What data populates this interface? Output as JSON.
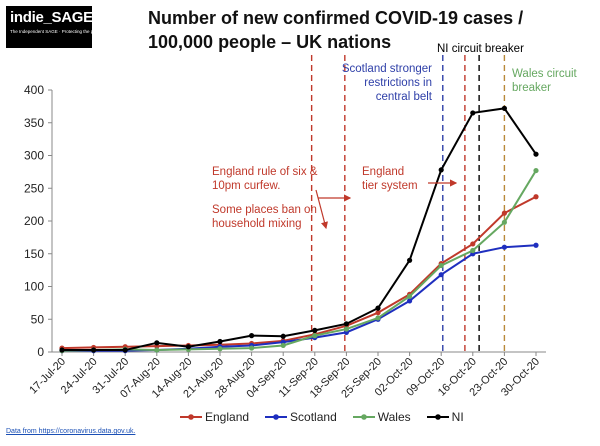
{
  "logo": {
    "name": "indie_SAGE",
    "tagline": "The Independent SAGE · Protecting the public"
  },
  "chart_data": {
    "type": "line",
    "title": "Number of new confirmed COVID-19 cases / 100,000 people - UK nations",
    "title_lines": [
      "Number of new confirmed COVID-19 cases /",
      "100,000 people – UK nations"
    ],
    "xlabel": "",
    "ylabel": "",
    "categories": [
      "17-Jul-20",
      "24-Jul-20",
      "31-Jul-20",
      "07-Aug-20",
      "14-Aug-20",
      "21-Aug-20",
      "28-Aug-20",
      "04-Sep-20",
      "11-Sep-20",
      "18-Sep-20",
      "25-Sep-20",
      "02-Oct-20",
      "09-Oct-20",
      "16-Oct-20",
      "23-Oct-20",
      "30-Oct-20"
    ],
    "ylim": [
      0,
      400
    ],
    "yticks": [
      0,
      50,
      100,
      150,
      200,
      250,
      300,
      350,
      400
    ],
    "grid": false,
    "legend_position": "bottom",
    "series": [
      {
        "name": "England",
        "color": "#c0392b",
        "values": [
          6,
          7,
          8,
          9,
          10,
          11,
          13,
          17,
          27,
          40,
          60,
          88,
          135,
          165,
          212,
          237
        ]
      },
      {
        "name": "Scotland",
        "color": "#1f2fbf",
        "values": [
          2,
          2,
          2,
          3,
          5,
          8,
          10,
          15,
          22,
          30,
          50,
          78,
          118,
          150,
          160,
          163
        ]
      },
      {
        "name": "Wales",
        "color": "#66a861",
        "values": [
          2,
          3,
          4,
          3,
          4,
          5,
          6,
          10,
          25,
          35,
          52,
          85,
          132,
          155,
          198,
          277
        ]
      },
      {
        "name": "NI",
        "color": "#000000",
        "values": [
          3,
          3,
          3,
          14,
          8,
          16,
          25,
          24,
          33,
          43,
          67,
          140,
          278,
          365,
          372,
          302
        ]
      }
    ],
    "events": [
      {
        "x": 7.9,
        "color": "#c0392b",
        "label": ""
      },
      {
        "x": 8.95,
        "color": "#c0392b",
        "label": ""
      },
      {
        "x": 12.75,
        "color": "#c0392b",
        "label": ""
      },
      {
        "x": 12.05,
        "color": "#2e3fa8",
        "label": ""
      },
      {
        "x": 13.2,
        "color": "#000000",
        "label": ""
      },
      {
        "x": 14.0,
        "color": "#b8893a",
        "label": ""
      }
    ],
    "annotations": [
      {
        "id": "england-rule-six",
        "text": [
          "England rule of six &",
          "10pm curfew."
        ],
        "color": "#c0392b",
        "align": "start"
      },
      {
        "id": "household-mixing",
        "text": [
          "Some places ban on",
          "household mixing"
        ],
        "color": "#c0392b",
        "align": "start"
      },
      {
        "id": "england-tier",
        "text": [
          "England",
          "tier system"
        ],
        "color": "#c0392b",
        "align": "start"
      },
      {
        "id": "scotland-restrictions",
        "text": [
          "Scotland stronger",
          "restrictions in",
          "central belt"
        ],
        "color": "#2e3fa8",
        "align": "end"
      },
      {
        "id": "ni-breaker",
        "text": [
          "NI circuit breaker"
        ],
        "color": "#000000",
        "align": "start"
      },
      {
        "id": "wales-breaker",
        "text": [
          "Wales circuit",
          "breaker"
        ],
        "color": "#66a861",
        "align": "start"
      }
    ]
  },
  "source": "Data from https://coronavirus.data.gov.uk."
}
